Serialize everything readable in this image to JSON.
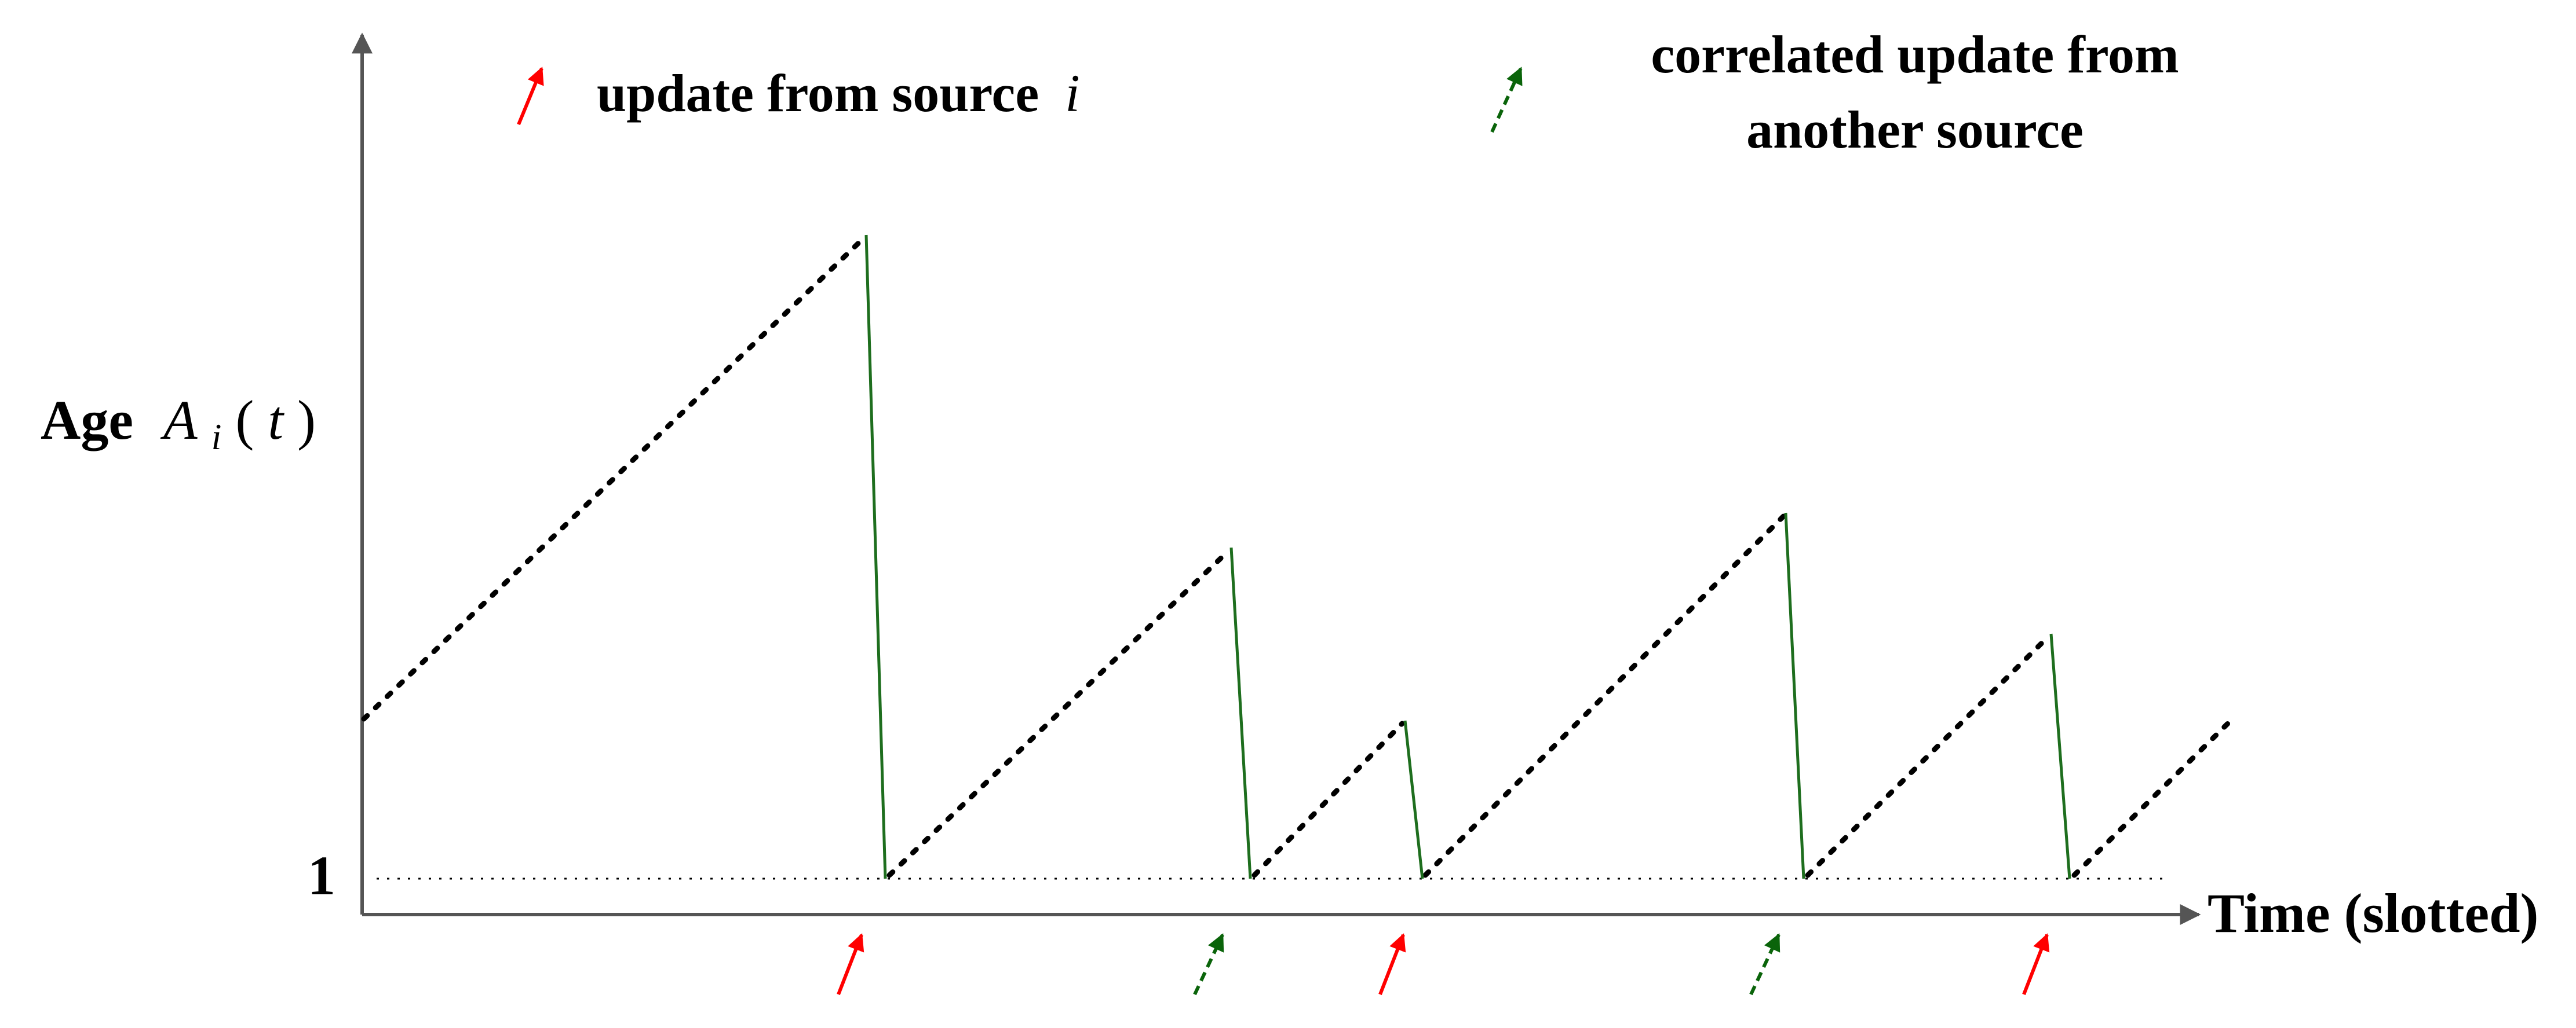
{
  "legend": {
    "source_update_label": "update from source",
    "source_update_symbol": "i",
    "correlated_update_line1": "correlated update from",
    "correlated_update_line2": "another source"
  },
  "axes": {
    "y_label_word": "Age",
    "y_label_symbol": "A",
    "y_label_subscript": "i",
    "y_label_argument_open": "(",
    "y_label_argument": "t",
    "y_label_argument_close": ")",
    "y_tick_label": "1",
    "x_label": "Time (slotted)"
  },
  "colors": {
    "axis": "#555555",
    "age_ramp": "#000000",
    "baseline": "#000000",
    "drop": "#1e6e1e",
    "source_arrow": "#ff0000",
    "correlated_arrow": "#0a640a"
  },
  "timeline": {
    "age_peaks": [
      7.8,
      4.7,
      2.9,
      5.0,
      3.5,
      2.9
    ],
    "drop_events": [
      "source",
      "correlated",
      "source",
      "correlated",
      "source"
    ],
    "arrow_events": [
      "source",
      "correlated",
      "source",
      "correlated",
      "source"
    ]
  }
}
